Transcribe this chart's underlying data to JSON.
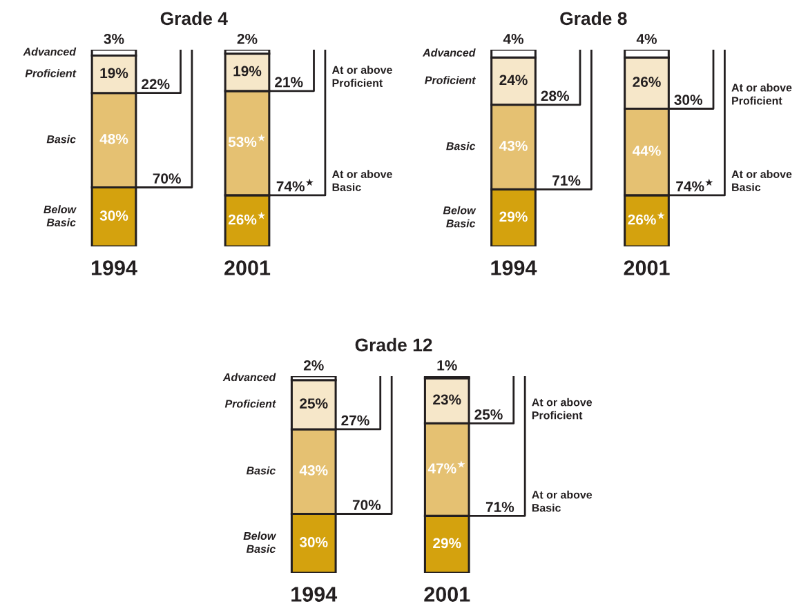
{
  "chart_data": [
    {
      "type": "bar",
      "title": "Grade 4",
      "stacked": true,
      "categories": [
        "1994",
        "2001"
      ],
      "ylim": [
        0,
        100
      ],
      "tick_labels": "x",
      "series": [
        {
          "name": "Below Basic",
          "color": "#d4a20e",
          "values": [
            30,
            26
          ],
          "value_labels": [
            "30%",
            "26%$^{★}$"
          ]
        },
        {
          "name": "Basic",
          "color": "#e5c172",
          "values": [
            48,
            53
          ],
          "value_labels": [
            "48%",
            "53%$^{★}$"
          ]
        },
        {
          "name": "Proficient",
          "color": "#f6e7c9",
          "values": [
            19,
            19
          ],
          "value_labels": [
            "19%",
            "19%"
          ]
        },
        {
          "name": "Advanced",
          "color": "#ffffff",
          "values": [
            3,
            2
          ],
          "value_labels": [
            "3%",
            "2%"
          ]
        }
      ],
      "annotations": [
        {
          "text": "22%",
          "x": "1994",
          "y": 78
        },
        {
          "text": "70%",
          "x": "1994",
          "y": 30
        },
        {
          "text": "21%",
          "x": "2001",
          "y": 79
        },
        {
          "text": "74%$^{★}$",
          "x": "2001",
          "y": 26
        },
        "At or above Proficient",
        "At or above Basic"
      ]
    },
    {
      "type": "bar",
      "title": "Grade 8",
      "stacked": true,
      "categories": [
        "1994",
        "2001"
      ],
      "ylim": [
        0,
        100
      ],
      "tick_labels": "x",
      "series": [
        {
          "name": "Below Basic",
          "color": "#d4a20e",
          "values": [
            29,
            26
          ],
          "value_labels": [
            "29%",
            "26%$^{★}$"
          ]
        },
        {
          "name": "Basic",
          "color": "#e5c172",
          "values": [
            43,
            44
          ],
          "value_labels": [
            "43%",
            "44%"
          ]
        },
        {
          "name": "Proficient",
          "color": "#f6e7c9",
          "values": [
            24,
            26
          ],
          "value_labels": [
            "24%",
            "26%"
          ]
        },
        {
          "name": "Advanced",
          "color": "#ffffff",
          "values": [
            4,
            4
          ],
          "value_labels": [
            "4%",
            "4%"
          ]
        }
      ],
      "annotations": [
        {
          "text": "28%",
          "x": "1994",
          "y": 72
        },
        {
          "text": "71%",
          "x": "1994",
          "y": 29
        },
        {
          "text": "30%",
          "x": "2001",
          "y": 70
        },
        {
          "text": "74%$^{★}$",
          "x": "2001",
          "y": 26
        },
        "At or above Proficient",
        "At or above Basic"
      ]
    },
    {
      "type": "bar",
      "title": "Grade 12",
      "stacked": true,
      "categories": [
        "1994",
        "2001"
      ],
      "ylim": [
        0,
        100
      ],
      "tick_labels": "x",
      "series": [
        {
          "name": "Below Basic",
          "color": "#d4a20e",
          "values": [
            30,
            29
          ],
          "value_labels": [
            "30%",
            "29%"
          ]
        },
        {
          "name": "Basic",
          "color": "#e5c172",
          "values": [
            43,
            47
          ],
          "value_labels": [
            "43%",
            "47%$^{★}$"
          ]
        },
        {
          "name": "Proficient",
          "color": "#f6e7c9",
          "values": [
            25,
            23
          ],
          "value_labels": [
            "25%",
            "23%"
          ]
        },
        {
          "name": "Advanced",
          "color": "#ffffff",
          "values": [
            2,
            1
          ],
          "value_labels": [
            "2%",
            "1%"
          ]
        }
      ],
      "annotations": [
        {
          "text": "27%",
          "x": "1994",
          "y": 73
        },
        {
          "text": "70%",
          "x": "1994",
          "y": 30
        },
        {
          "text": "25%",
          "x": "2001",
          "y": 76
        },
        {
          "text": "71%",
          "x": "2001",
          "y": 29
        },
        "At or above Proficient",
        "At or above Basic"
      ]
    }
  ]
}
